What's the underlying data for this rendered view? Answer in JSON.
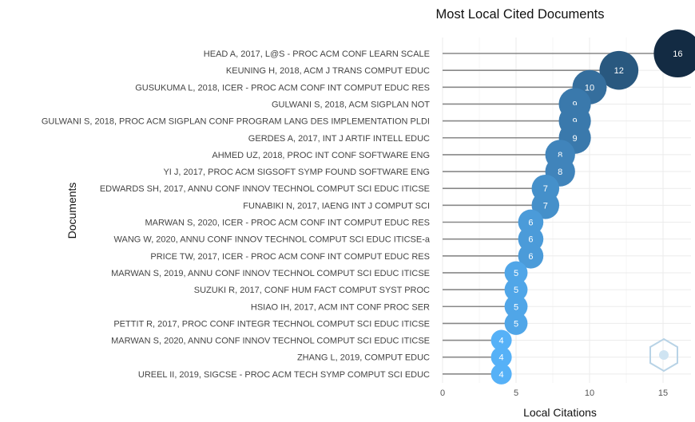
{
  "chart_data": {
    "type": "scatter",
    "title": "Most Local Cited Documents",
    "xlabel": "Local Citations",
    "ylabel": "Documents",
    "xlim": [
      0,
      16.5
    ],
    "x_ticks": [
      0,
      5,
      10,
      15
    ],
    "grid": true,
    "documents": [
      "HEAD A, 2017, L@S - PROC ACM CONF LEARN SCALE",
      "KEUNING H, 2018, ACM J TRANS COMPUT EDUC",
      "GUSUKUMA L, 2018, ICER - PROC ACM CONF INT COMPUT EDUC RES",
      "GULWANI S, 2018, ACM SIGPLAN NOT",
      "GULWANI S, 2018, PROC ACM SIGPLAN CONF PROGRAM LANG DES IMPLEMENTATION PLDI",
      "GERDES A, 2017, INT J ARTIF INTELL EDUC",
      "AHMED UZ, 2018, PROC INT CONF SOFTWARE ENG",
      "YI J, 2017, PROC ACM SIGSOFT SYMP FOUND SOFTWARE ENG",
      "EDWARDS SH, 2017, ANNU CONF INNOV TECHNOL COMPUT SCI EDUC ITICSE",
      "FUNABIKI N, 2017, IAENG INT J COMPUT SCI",
      "MARWAN S, 2020, ICER - PROC ACM CONF INT COMPUT EDUC RES",
      "WANG W, 2020, ANNU CONF INNOV TECHNOL COMPUT SCI EDUC ITICSE-a",
      "PRICE TW, 2017, ICER - PROC ACM CONF INT COMPUT EDUC RES",
      "MARWAN S, 2019, ANNU CONF INNOV TECHNOL COMPUT SCI EDUC ITICSE",
      "SUZUKI R, 2017, CONF HUM FACT COMPUT SYST PROC",
      "HSIAO IH, 2017, ACM INT CONF PROC SER",
      "PETTIT R, 2017, PROC CONF INTEGR TECHNOL COMPUT SCI EDUC ITICSE",
      "MARWAN S, 2020, ANNU CONF INNOV TECHNOL COMPUT SCI EDUC ITICSE",
      "ZHANG L, 2019, COMPUT EDUC",
      "UREEL II, 2019, SIGCSE - PROC ACM TECH SYMP COMPUT SCI EDUC"
    ],
    "values": [
      16,
      12,
      10,
      9,
      9,
      9,
      8,
      8,
      7,
      7,
      6,
      6,
      6,
      5,
      5,
      5,
      5,
      4,
      4,
      4
    ],
    "colors": {
      "low": "#56B1F7",
      "high": "#132B43",
      "stem": "#888888",
      "grid": "#ebebeb"
    }
  }
}
